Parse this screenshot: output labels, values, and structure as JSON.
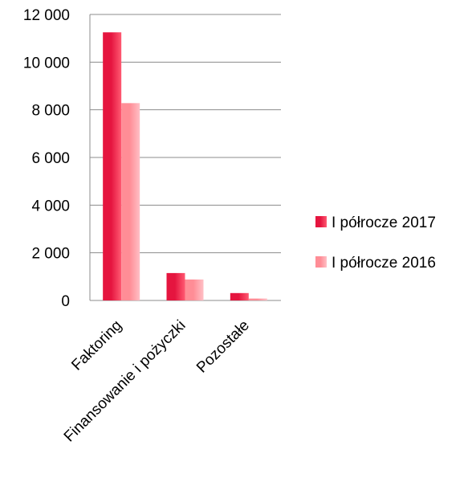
{
  "chart_data": {
    "type": "bar",
    "categories": [
      "Faktoring",
      "Finansowanie i pożyczki",
      "Pozostałe"
    ],
    "series": [
      {
        "name": "I półrocze 2017",
        "values": [
          11250,
          1150,
          310
        ],
        "color": "#e5153f",
        "gradient_light": "#ff5a72"
      },
      {
        "name": "I półrocze 2016",
        "values": [
          8280,
          880,
          80
        ],
        "color": "#ff8d96",
        "gradient_light": "#ffc0c6"
      }
    ],
    "y_ticks": [
      "0",
      "2 000",
      "4 000",
      "6 000",
      "8 000",
      "10 000",
      "12 000"
    ],
    "ylim": [
      0,
      12000
    ],
    "grid": true,
    "legend": "right"
  }
}
